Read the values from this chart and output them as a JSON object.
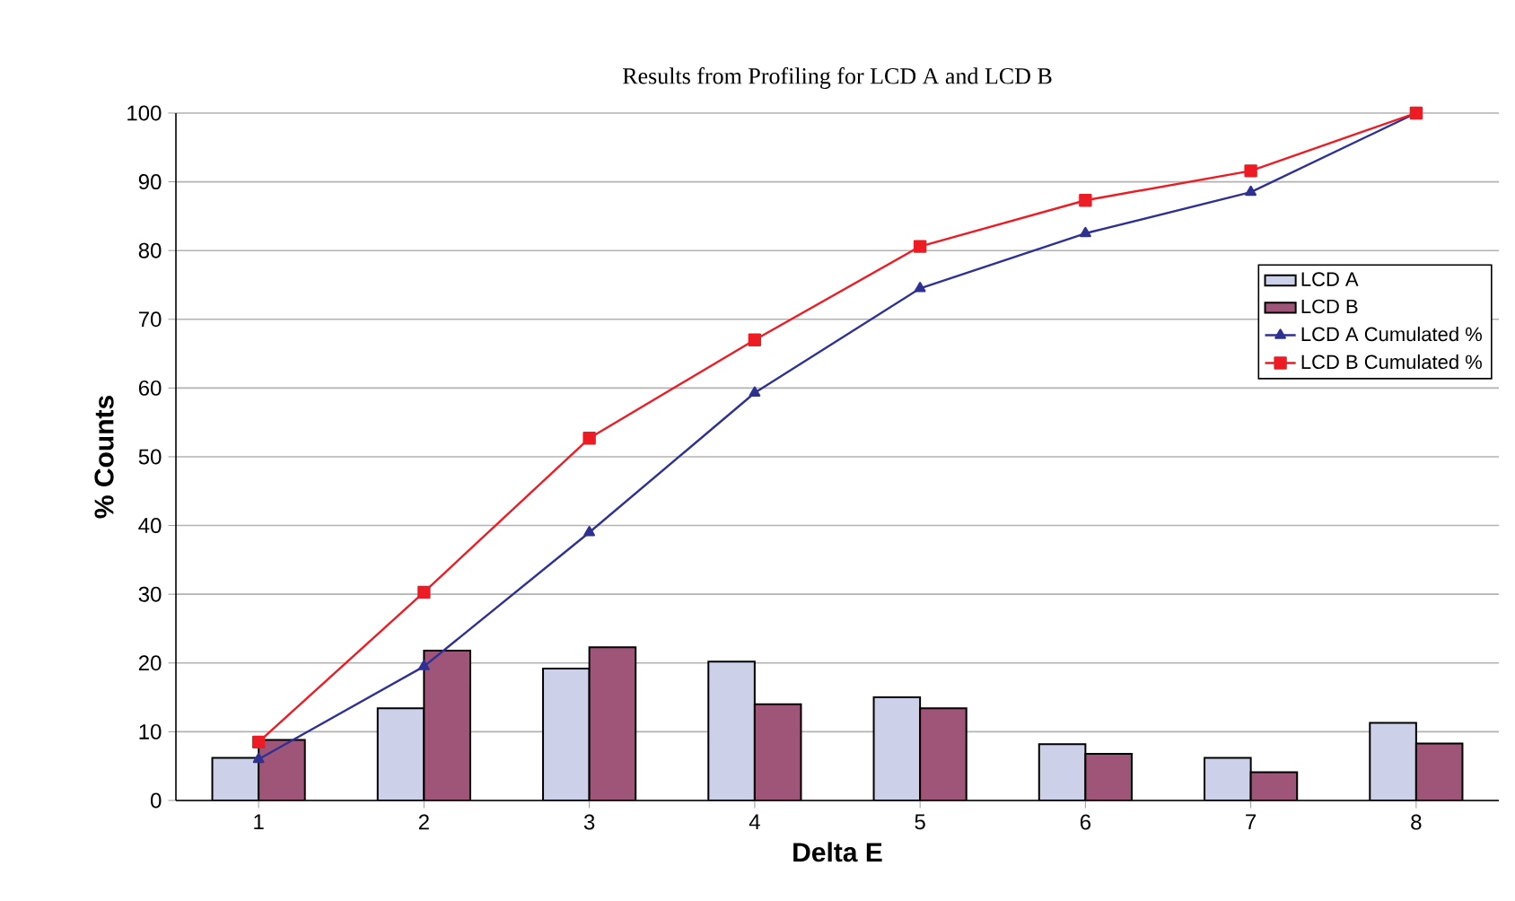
{
  "chart_data": {
    "type": "bar",
    "title": "Results from Profiling for LCD A and LCD B",
    "xlabel": "Delta E",
    "ylabel": "% Counts",
    "categories": [
      "1",
      "2",
      "3",
      "4",
      "5",
      "6",
      "7",
      "8"
    ],
    "series": [
      {
        "name": "LCD A",
        "color": "#ccd0e8",
        "values": [
          6.2,
          13.4,
          19.2,
          20.2,
          15.0,
          8.2,
          6.2,
          11.3
        ]
      },
      {
        "name": "LCD B",
        "color": "#9e5577",
        "values": [
          8.8,
          21.8,
          22.3,
          14.0,
          13.4,
          6.8,
          4.1,
          8.3
        ]
      },
      {
        "name": "LCD A Cumulated %",
        "type": "line",
        "color": "#2e3192",
        "marker": "triangle",
        "values": [
          6.0,
          19.5,
          39.0,
          59.3,
          74.5,
          82.5,
          88.5,
          100.0
        ]
      },
      {
        "name": "LCD B Cumulated %",
        "type": "line",
        "color": "#ed1c24",
        "marker": "square",
        "values": [
          8.5,
          30.3,
          52.7,
          67.0,
          80.6,
          87.3,
          91.6,
          100.0
        ]
      }
    ],
    "ylim": [
      0,
      100
    ],
    "yticks": [
      0,
      10,
      20,
      30,
      40,
      50,
      60,
      70,
      80,
      90,
      100
    ],
    "grid": "y",
    "legend": "right"
  }
}
